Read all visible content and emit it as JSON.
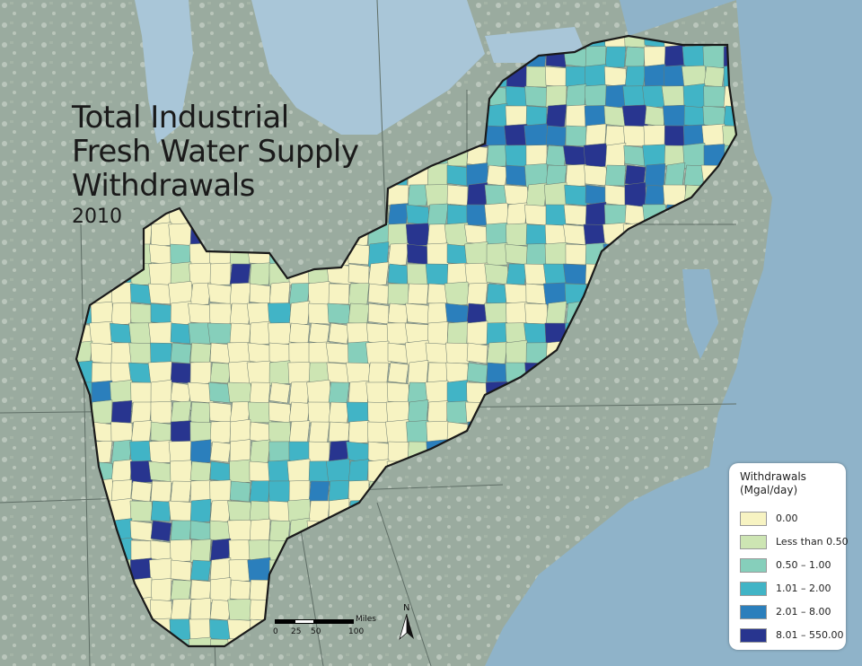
{
  "title": {
    "line1": "Total Industrial",
    "line2": "Fresh Water Supply",
    "line3": "Withdrawals",
    "year": "2010"
  },
  "legend": {
    "title_line1": "Withdrawals",
    "title_line2": "(Mgal/day)",
    "classes": [
      {
        "label": "0.00",
        "color": "#f7f3c2"
      },
      {
        "label": "Less than 0.50",
        "color": "#cde5b3"
      },
      {
        "label": "0.50 – 1.00",
        "color": "#86cfbb"
      },
      {
        "label": "1.01 – 2.00",
        "color": "#41b4c6"
      },
      {
        "label": "2.01 – 8.00",
        "color": "#2b7fbc"
      },
      {
        "label": "8.01 – 550.00",
        "color": "#28358f"
      }
    ]
  },
  "scale_bar": {
    "unit": "Miles",
    "ticks": [
      "0",
      "25",
      "50",
      "100"
    ]
  },
  "north_arrow": {
    "label": "N"
  },
  "colors": {
    "water": "#8fb3c9",
    "land": "#9aab9f",
    "region_outline": "#1a1a1a"
  }
}
